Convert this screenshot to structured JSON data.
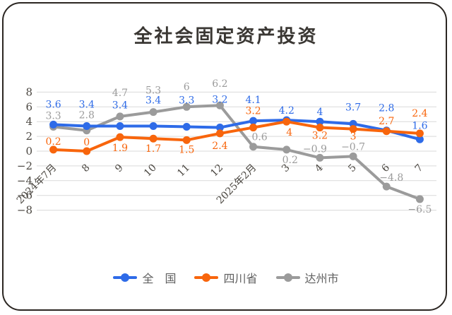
{
  "title": {
    "text": "全社会固定资产投资",
    "color": "#3a3733"
  },
  "legend": {
    "position": "bottom",
    "items": [
      {
        "label": "全　国"
      },
      {
        "label": "四川省"
      },
      {
        "label": "达州市"
      }
    ]
  },
  "colors": {
    "national_blue": "#2e6be8",
    "sichuan_orange": "#f8650c",
    "dazhou_gray": "#9b9b9b",
    "gridline": "#d9d9d9",
    "axis_text": "#4b4741",
    "frame_border": "#2b2622",
    "background": "#ffffff"
  },
  "chart_data": {
    "type": "line",
    "title": "全社会固定资产投资",
    "categories": [
      "2024年7月",
      "8",
      "9",
      "10",
      "11",
      "12",
      "2025年2月",
      "3",
      "4",
      "5",
      "6",
      "7"
    ],
    "series": [
      {
        "name": "全国",
        "key": "national",
        "color": "#2e6be8",
        "values": [
          3.6,
          3.4,
          3.4,
          3.4,
          3.3,
          3.2,
          4.1,
          4.2,
          4,
          3.7,
          2.8,
          1.6
        ],
        "label_dy": [
          -29,
          -31,
          -30,
          -37,
          -38,
          -40,
          -30,
          -14,
          -14,
          -24,
          -32,
          -20
        ],
        "label_dx": [
          0,
          0,
          0,
          0,
          0,
          0,
          0,
          0,
          0,
          0,
          0,
          0
        ]
      },
      {
        "name": "四川省",
        "key": "sichuan",
        "color": "#f8650c",
        "values": [
          0.2,
          0,
          1.9,
          1.7,
          1.5,
          2.4,
          3.2,
          4,
          3.2,
          3,
          2.7,
          2.4
        ],
        "label_dy": [
          -12,
          -13,
          15,
          14,
          13,
          17,
          -24,
          15,
          11,
          10,
          -15,
          -29
        ],
        "label_dx": [
          0,
          0,
          0,
          0,
          0,
          0,
          0,
          4,
          0,
          0,
          0,
          0
        ]
      },
      {
        "name": "达州市",
        "key": "dazhou",
        "color": "#9b9b9b",
        "values": [
          3.3,
          2.8,
          4.7,
          5.3,
          6,
          6.2,
          0.6,
          0.2,
          -0.9,
          -0.7,
          -4.8,
          -6.5
        ],
        "label_dy": [
          -16,
          -22,
          -34,
          -31,
          -29,
          -31,
          -14,
          14,
          -13,
          -14,
          -13,
          14
        ],
        "label_dx": [
          0,
          0,
          0,
          0,
          0,
          0,
          9,
          5,
          -7,
          0,
          7,
          0
        ]
      }
    ],
    "yticks": [
      8,
      6,
      4,
      2,
      0,
      -2,
      -4,
      -6,
      -8
    ],
    "ylim": [
      -8,
      8
    ],
    "grid": true,
    "legend_position": "bottom",
    "draw_order": [
      2,
      0,
      1
    ]
  }
}
